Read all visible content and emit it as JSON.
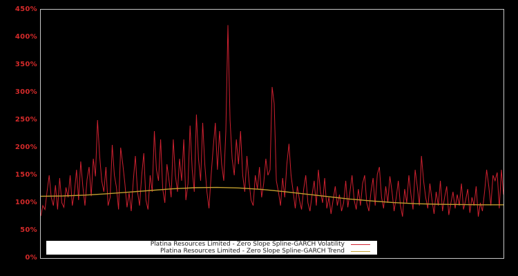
{
  "chart_data": {
    "type": "line",
    "title": "",
    "background_color": "#000000",
    "plot_border_color": "#c9c9c9",
    "tick_label_color": "#d42a2a",
    "grid": false,
    "legend_position": "bottom-left-inside",
    "x_axis": {
      "label": "",
      "tick_labels_visible": false
    },
    "y_axis": {
      "label": "",
      "unit": "%",
      "min": 0,
      "max": 450,
      "ticks": [
        {
          "label": "0%",
          "value": 0
        },
        {
          "label": "50%",
          "value": 50
        },
        {
          "label": "100%",
          "value": 100
        },
        {
          "label": "150%",
          "value": 150
        },
        {
          "label": "200%",
          "value": 200
        },
        {
          "label": "250%",
          "value": 250
        },
        {
          "label": "300%",
          "value": 300
        },
        {
          "label": "350%",
          "value": 350
        },
        {
          "label": "400%",
          "value": 400
        },
        {
          "label": "450%",
          "value": 450
        }
      ]
    },
    "series": [
      {
        "name": "Platina Resources Limited - Zero Slope Spline-GARCH Volatility",
        "color": "#cf2130",
        "stroke_width": 1,
        "values": [
          76,
          95,
          88,
          120,
          150,
          110,
          95,
          132,
          88,
          145,
          100,
          92,
          128,
          110,
          150,
          95,
          118,
          160,
          105,
          175,
          130,
          95,
          142,
          165,
          112,
          180,
          148,
          250,
          185,
          140,
          120,
          165,
          95,
          110,
          205,
          150,
          128,
          88,
          200,
          170,
          135,
          92,
          118,
          85,
          140,
          185,
          120,
          95,
          150,
          190,
          105,
          88,
          150,
          120,
          230,
          160,
          140,
          215,
          125,
          100,
          170,
          140,
          110,
          215,
          150,
          120,
          180,
          140,
          215,
          105,
          135,
          240,
          160,
          120,
          260,
          180,
          140,
          245,
          170,
          120,
          90,
          150,
          200,
          245,
          160,
          230,
          170,
          140,
          230,
          422,
          250,
          180,
          150,
          215,
          170,
          230,
          150,
          120,
          185,
          140,
          105,
          95,
          150,
          125,
          165,
          110,
          135,
          180,
          150,
          160,
          310,
          280,
          140,
          120,
          95,
          145,
          110,
          170,
          207,
          150,
          120,
          90,
          130,
          105,
          88,
          125,
          150,
          100,
          85,
          115,
          140,
          95,
          160,
          120,
          100,
          145,
          90,
          110,
          80,
          105,
          130,
          95,
          115,
          85,
          100,
          140,
          92,
          120,
          150,
          105,
          88,
          125,
          95,
          135,
          150,
          100,
          85,
          120,
          145,
          95,
          152,
          165,
          110,
          90,
          130,
          100,
          148,
          120,
          85,
          110,
          140,
          95,
          75,
          125,
          100,
          150,
          115,
          88,
          160,
          130,
          95,
          185,
          140,
          110,
          90,
          135,
          105,
          80,
          120,
          95,
          140,
          85,
          110,
          130,
          78,
          100,
          120,
          90,
          115,
          95,
          135,
          88,
          105,
          125,
          82,
          110,
          95,
          130,
          75,
          100,
          85,
          120,
          160,
          130,
          95,
          150,
          140,
          155,
          90,
          160,
          115
        ]
      },
      {
        "name": "Platina Resources Limited - Zero Slope Spline-GARCH Trend",
        "color": "#c3a02f",
        "stroke_width": 1.4,
        "values": [
          112,
          112.5,
          114,
          116.5,
          119.5,
          122.5,
          125.5,
          127.5,
          128,
          127,
          124.5,
          120.5,
          116,
          111.5,
          107,
          103.5,
          100.5,
          98.5,
          97.5,
          97,
          96.5,
          96.5
        ]
      }
    ]
  }
}
